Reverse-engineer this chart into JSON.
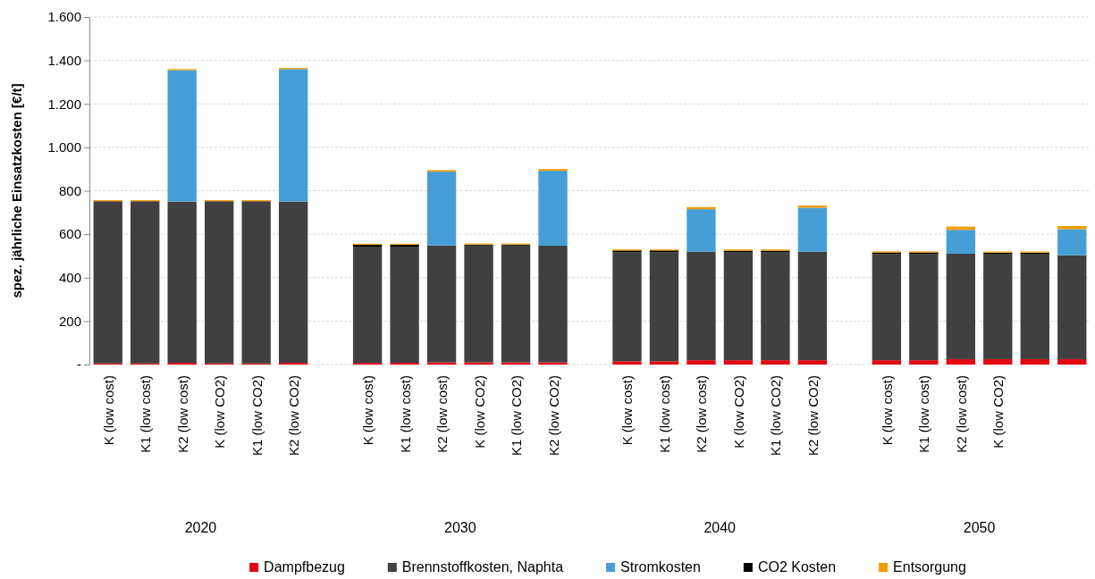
{
  "chart_data": {
    "type": "bar",
    "stacked": true,
    "ylabel": "spez. jährliche Einsatzkosten [€/t]",
    "categories": [
      "K (low cost)",
      "K1 (low cost)",
      "K2 (low cost)",
      "K (low CO2)",
      "K1 (low CO2)",
      "K2 (low CO2)",
      "K (low cost)",
      "K1 (low cost)",
      "K2 (low cost)",
      "K (low CO2)",
      "K1 (low CO2)",
      "K2 (low CO2)",
      "K (low cost)",
      "K1 (low cost)",
      "K2 (low cost)",
      "K (low CO2)",
      "K1 (low CO2)",
      "K2 (low CO2)",
      "K (low cost)",
      "K1 (low cost)",
      "K2 (low cost)",
      "K (low CO2)",
      null,
      null
    ],
    "annotations": [
      "2020",
      "2030",
      "2040",
      "2050"
    ],
    "series": [
      {
        "name": "Dampfbezug",
        "color": "#e30613",
        "values": [
          5,
          5,
          8,
          5,
          5,
          8,
          8,
          8,
          10,
          10,
          10,
          10,
          15,
          15,
          20,
          20,
          20,
          20,
          20,
          20,
          25,
          25,
          25,
          25
        ]
      },
      {
        "name": "Brennstoffkosten, Naphta",
        "color": "#404040",
        "values": [
          745,
          745,
          742,
          745,
          745,
          742,
          535,
          535,
          538,
          538,
          538,
          537,
          502,
          502,
          500,
          498,
          498,
          500,
          488,
          488,
          485,
          485,
          485,
          478
        ]
      },
      {
        "name": "Stromkosten",
        "color": "#459fd6",
        "values": [
          0,
          0,
          605,
          0,
          0,
          610,
          0,
          0,
          340,
          0,
          0,
          345,
          0,
          0,
          195,
          0,
          0,
          202,
          0,
          0,
          110,
          0,
          0,
          120
        ]
      },
      {
        "name": "CO2 Kosten",
        "color": "#000000",
        "values": [
          2,
          2,
          0,
          2,
          2,
          0,
          8,
          8,
          0,
          4,
          4,
          0,
          8,
          8,
          0,
          6,
          6,
          0,
          8,
          8,
          0,
          5,
          5,
          0
        ]
      },
      {
        "name": "Entsorgung",
        "color": "#f59c00",
        "values": [
          5,
          5,
          5,
          5,
          5,
          5,
          5,
          5,
          7,
          5,
          5,
          8,
          5,
          5,
          10,
          6,
          6,
          10,
          5,
          5,
          15,
          5,
          5,
          15
        ]
      }
    ],
    "ylim": [
      0,
      1600
    ],
    "yticks": [
      {
        "value": 0,
        "label": "-"
      },
      200,
      400,
      600,
      800,
      {
        "value": 1000,
        "label": "1.000"
      },
      {
        "value": 1200,
        "label": "1.200"
      },
      {
        "value": 1400,
        "label": "1.400"
      },
      {
        "value": 1600,
        "label": "1.600"
      }
    ],
    "grid": "y",
    "legend": "bottom"
  }
}
